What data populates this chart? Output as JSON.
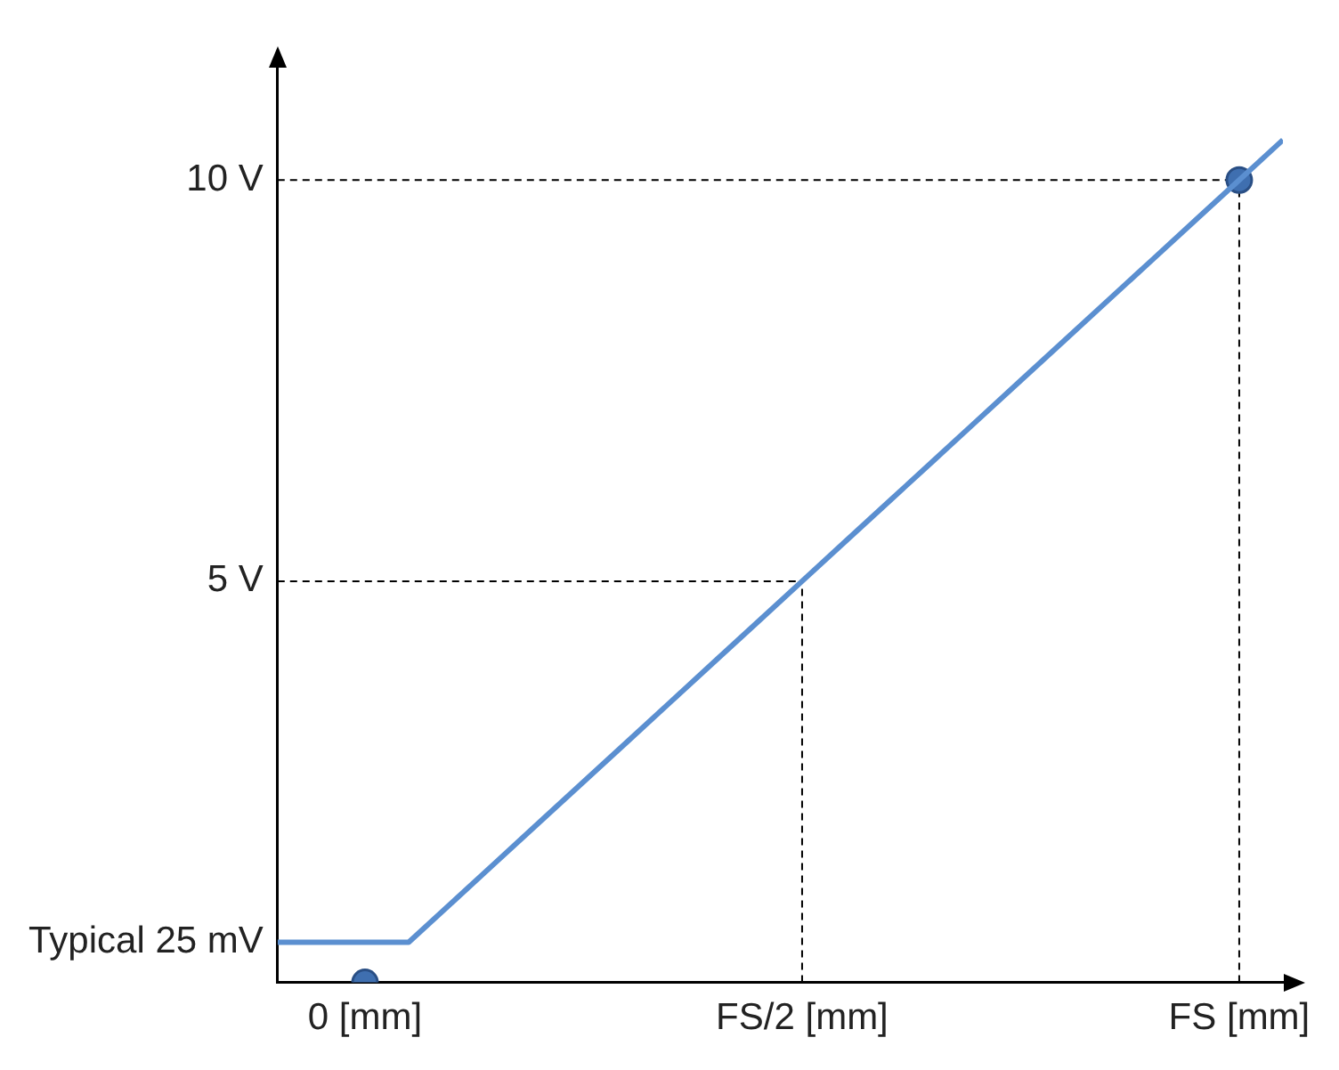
{
  "chart_data": {
    "type": "line",
    "categories": [
      null,
      null,
      "0 [mm]",
      null,
      null,
      null,
      null,
      null,
      null,
      null,
      null,
      null,
      "FS/2 [mm]",
      null,
      null,
      null,
      null,
      null,
      null,
      null,
      null,
      null,
      "FS [mm]",
      null
    ],
    "ylim": [
      0,
      11.4
    ],
    "yticks": [
      {
        "value": 0.5,
        "label": "Typical 25 mV"
      },
      {
        "value": 5,
        "label": "5 V"
      },
      {
        "value": 10,
        "label": "10 V"
      }
    ],
    "grid": false,
    "legend": false,
    "series": [
      {
        "color": "#5b8fd0",
        "values": [
          0.5,
          0.5,
          0.5,
          0.5,
          1,
          1.5,
          2,
          2.5,
          3,
          3.5,
          4,
          4.5,
          5,
          5.5,
          6,
          6.5,
          7,
          7.5,
          8,
          8.5,
          9,
          9.5,
          10,
          10.5
        ],
        "marker": "none"
      },
      {
        "type": "scatter",
        "color": "#3f6fb0",
        "x": [
          "0 [mm]",
          "FS [mm]"
        ],
        "values": [
          0,
          10
        ],
        "marker": "circle"
      }
    ],
    "ref_lines": [
      {
        "axis": "y",
        "value": 10,
        "color": "#000000",
        "line_style": "dashed"
      },
      {
        "axis": "y",
        "value": 5,
        "color": "#000000",
        "line_style": "dashed"
      },
      {
        "axis": "x",
        "value": "FS/2 [mm]",
        "color": "#000000",
        "line_style": "dashed"
      },
      {
        "axis": "x",
        "value": "FS [mm]",
        "color": "#000000",
        "line_style": "dashed"
      }
    ]
  }
}
